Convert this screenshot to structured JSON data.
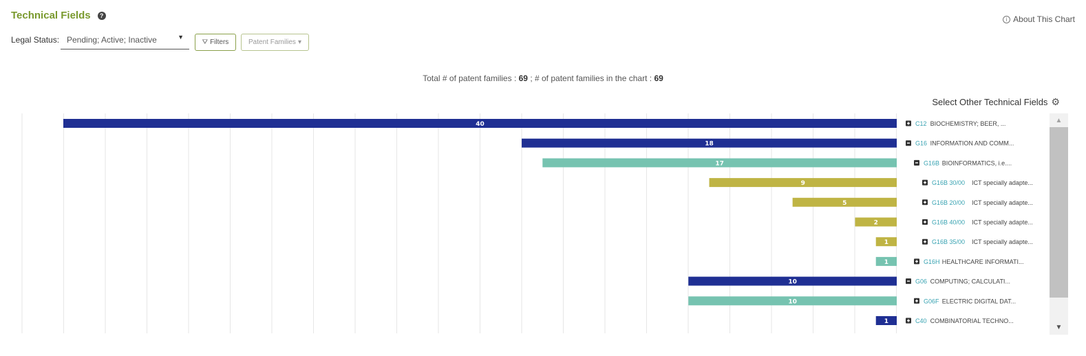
{
  "header": {
    "title": "Technical Fields",
    "help_icon": "question-circle-icon",
    "about_label": "About This Chart"
  },
  "controls": {
    "legal_status_label": "Legal Status:",
    "legal_status_value": "Pending; Active; Inactive",
    "filters_label": "Filters",
    "patent_families_label": "Patent Families"
  },
  "summary": {
    "total_label": "Total # of patent families :",
    "total_value": "69",
    "in_chart_label": "; # of patent families in the chart :",
    "in_chart_value": "69"
  },
  "select_other_label": "Select Other Technical Fields",
  "colors": {
    "level1": "#1f2f93",
    "level2": "#76c3b0",
    "level3": "#bfb444",
    "code": "#39a3b2"
  },
  "chart_data": {
    "type": "bar",
    "orientation": "horizontal",
    "grid": true,
    "xlim": [
      0,
      40
    ],
    "rows": [
      {
        "toggle": "plus",
        "level": 1,
        "code": "C12",
        "name": "BIOCHEMISTRY; BEER, ...",
        "value": 40
      },
      {
        "toggle": "minus",
        "level": 1,
        "code": "G16",
        "name": "INFORMATION AND COMM...",
        "value": 18
      },
      {
        "toggle": "minus",
        "level": 2,
        "code": "G16B",
        "name": "BIOINFORMATICS, i.e....",
        "value": 17
      },
      {
        "toggle": "plus",
        "level": 3,
        "code": "G16B 30/00",
        "name": "ICT specially adapte...",
        "value": 9
      },
      {
        "toggle": "plus",
        "level": 3,
        "code": "G16B 20/00",
        "name": "ICT specially adapte...",
        "value": 5
      },
      {
        "toggle": "plus",
        "level": 3,
        "code": "G16B 40/00",
        "name": "ICT specially adapte...",
        "value": 2
      },
      {
        "toggle": "plus",
        "level": 3,
        "code": "G16B 35/00",
        "name": "ICT specially adapte...",
        "value": 1
      },
      {
        "toggle": "plus",
        "level": 2,
        "code": "G16H",
        "name": "HEALTHCARE INFORMATI...",
        "value": 1
      },
      {
        "toggle": "minus",
        "level": 1,
        "code": "G06",
        "name": "COMPUTING; CALCULATI...",
        "value": 10
      },
      {
        "toggle": "plus",
        "level": 2,
        "code": "G06F",
        "name": "ELECTRIC DIGITAL DAT...",
        "value": 10
      },
      {
        "toggle": "plus",
        "level": 1,
        "code": "C40",
        "name": "COMBINATORIAL TECHNO...",
        "value": 1
      }
    ]
  }
}
